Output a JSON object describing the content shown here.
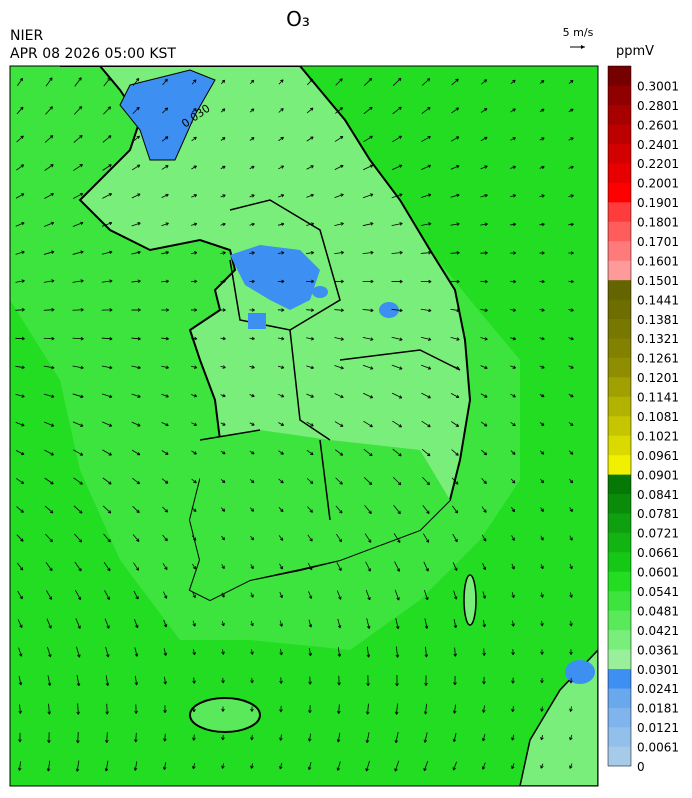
{
  "header": {
    "title": "O₃",
    "agency": "NIER",
    "datetime": "APR 08 2026 05:00 KST",
    "wind_scale": "5 m/s"
  },
  "map": {
    "contour_label": "0.030"
  },
  "colorbar": {
    "unit": "ppmV",
    "labels": [
      "0",
      "0.0061",
      "0.0121",
      "0.0181",
      "0.0241",
      "0.0301",
      "0.0361",
      "0.0421",
      "0.0481",
      "0.0541",
      "0.0601",
      "0.0661",
      "0.0721",
      "0.0781",
      "0.0841",
      "0.0901",
      "0.0961",
      "0.1021",
      "0.1081",
      "0.1141",
      "0.1201",
      "0.1261",
      "0.1321",
      "0.1381",
      "0.1441",
      "0.1501",
      "0.1601",
      "0.1701",
      "0.1801",
      "0.1901",
      "0.2001",
      "0.2201",
      "0.2401",
      "0.2601",
      "0.2801",
      "0.3001"
    ],
    "colors": [
      "#a6cbe8",
      "#93c0ea",
      "#7fb4ec",
      "#6aa8ee",
      "#3d8ff2",
      "#9af09a",
      "#7aee7a",
      "#5ae95a",
      "#3ee43e",
      "#22dd22",
      "#16c816",
      "#12b412",
      "#0ea00e",
      "#0a8c0a",
      "#067806",
      "#f0f000",
      "#dada00",
      "#c6c600",
      "#b2b200",
      "#a0a000",
      "#8e8e00",
      "#828200",
      "#787800",
      "#6e6e00",
      "#646400",
      "#ff9a9a",
      "#ff7a7a",
      "#ff5c5c",
      "#ff3c3c",
      "#ff0000",
      "#e60000",
      "#d20000",
      "#bc0000",
      "#a60000",
      "#900000",
      "#760000"
    ]
  }
}
